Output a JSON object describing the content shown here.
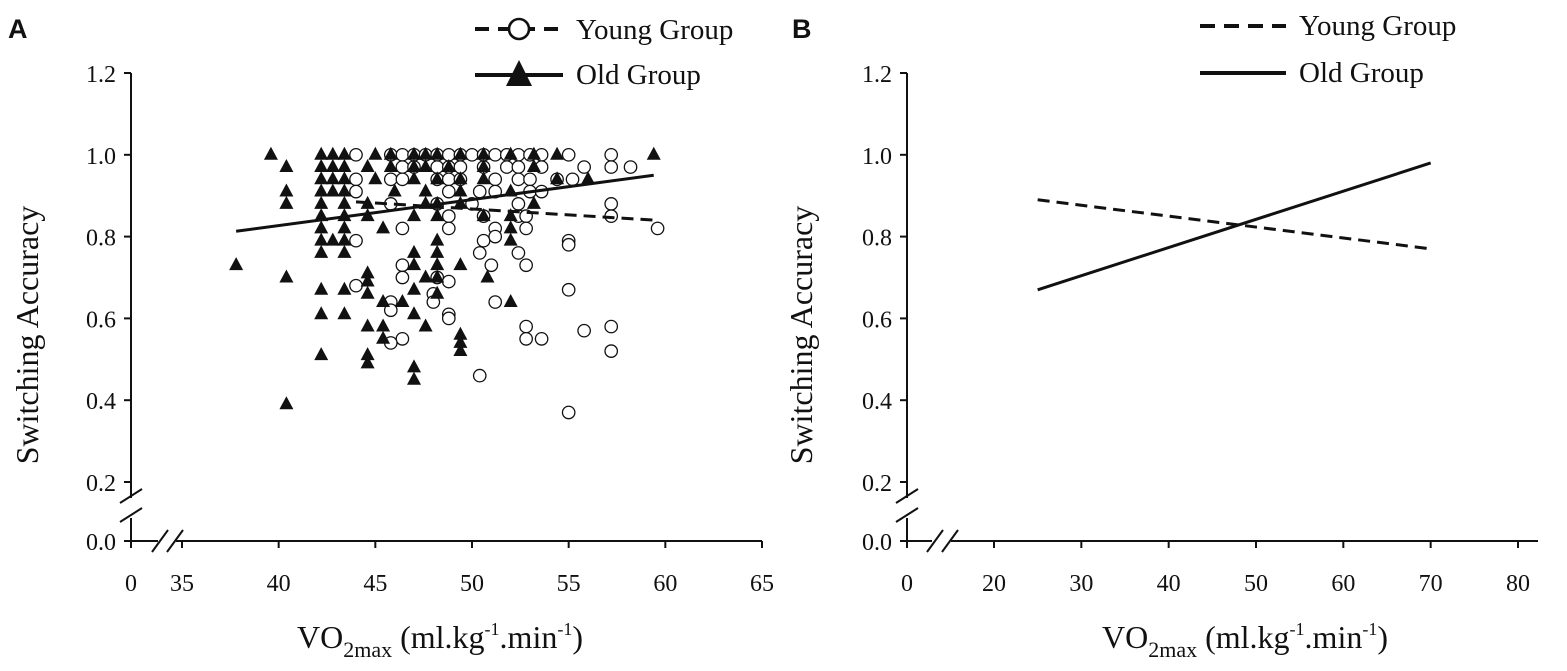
{
  "figure": {
    "panel_a_letter": "A",
    "panel_b_letter": "B"
  },
  "chart_data": [
    {
      "panel": "A",
      "type": "scatter",
      "title": "",
      "ylabel": "Switching Accuracy",
      "xlabel": {
        "main": "VO",
        "sub": "2max",
        "unit_a": " (ml.kg",
        "sup1": "-1",
        "unit_b": ".min",
        "sup2": "-1",
        "unit_c": ")"
      },
      "xlim_broken": [
        0,
        35,
        65
      ],
      "ylim_broken": [
        0.0,
        0.2,
        1.2
      ],
      "x_ticks": [
        "0",
        "35",
        "40",
        "45",
        "50",
        "55",
        "60",
        "65"
      ],
      "y_ticks": [
        "0.0",
        "0.2",
        "0.4",
        "0.6",
        "0.8",
        "1.0",
        "1.2"
      ],
      "legend": [
        {
          "label": "Young Group",
          "marker": "open-circle",
          "line": "dashed"
        },
        {
          "label": "Old Group",
          "marker": "filled-triangle",
          "line": "solid"
        }
      ],
      "series": [
        {
          "name": "Young Group",
          "marker": "open-circle",
          "points": [
            [
              44,
              1.0
            ],
            [
              45.8,
              1.0
            ],
            [
              46.4,
              1.0
            ],
            [
              47.0,
              1.0
            ],
            [
              47.6,
              1.0
            ],
            [
              48.2,
              1.0
            ],
            [
              48.8,
              1.0
            ],
            [
              49.4,
              1.0
            ],
            [
              50.0,
              1.0
            ],
            [
              50.6,
              1.0
            ],
            [
              51.2,
              1.0
            ],
            [
              51.8,
              1.0
            ],
            [
              52.4,
              1.0
            ],
            [
              53.0,
              1.0
            ],
            [
              53.6,
              1.0
            ],
            [
              55.0,
              1.0
            ],
            [
              57.2,
              1.0
            ],
            [
              46.4,
              0.97
            ],
            [
              47.0,
              0.97
            ],
            [
              48.2,
              0.97
            ],
            [
              48.8,
              0.97
            ],
            [
              49.4,
              0.97
            ],
            [
              50.6,
              0.97
            ],
            [
              51.8,
              0.97
            ],
            [
              52.4,
              0.97
            ],
            [
              53.6,
              0.97
            ],
            [
              55.8,
              0.97
            ],
            [
              57.2,
              0.97
            ],
            [
              58.2,
              0.97
            ],
            [
              44.0,
              0.94
            ],
            [
              45.8,
              0.94
            ],
            [
              46.4,
              0.94
            ],
            [
              48.2,
              0.94
            ],
            [
              48.8,
              0.94
            ],
            [
              49.4,
              0.94
            ],
            [
              51.2,
              0.94
            ],
            [
              52.4,
              0.94
            ],
            [
              53.0,
              0.94
            ],
            [
              54.4,
              0.94
            ],
            [
              55.2,
              0.94
            ],
            [
              44.0,
              0.91
            ],
            [
              48.8,
              0.91
            ],
            [
              50.4,
              0.91
            ],
            [
              51.2,
              0.91
            ],
            [
              53.0,
              0.91
            ],
            [
              53.6,
              0.91
            ],
            [
              45.8,
              0.88
            ],
            [
              48.2,
              0.88
            ],
            [
              50.0,
              0.88
            ],
            [
              52.4,
              0.88
            ],
            [
              57.2,
              0.88
            ],
            [
              48.8,
              0.85
            ],
            [
              50.6,
              0.85
            ],
            [
              52.4,
              0.85
            ],
            [
              52.8,
              0.85
            ],
            [
              57.2,
              0.85
            ],
            [
              46.4,
              0.82
            ],
            [
              48.8,
              0.82
            ],
            [
              51.2,
              0.82
            ],
            [
              52.8,
              0.82
            ],
            [
              59.6,
              0.82
            ],
            [
              44.0,
              0.79
            ],
            [
              50.6,
              0.79
            ],
            [
              51.2,
              0.8
            ],
            [
              50.4,
              0.76
            ],
            [
              52.4,
              0.76
            ],
            [
              55.0,
              0.79
            ],
            [
              55.0,
              0.78
            ],
            [
              46.4,
              0.73
            ],
            [
              51.0,
              0.73
            ],
            [
              52.8,
              0.73
            ],
            [
              46.4,
              0.7
            ],
            [
              48.2,
              0.7
            ],
            [
              48.8,
              0.69
            ],
            [
              44.0,
              0.68
            ],
            [
              48.0,
              0.66
            ],
            [
              48.0,
              0.64
            ],
            [
              51.2,
              0.64
            ],
            [
              45.8,
              0.64
            ],
            [
              45.8,
              0.62
            ],
            [
              55.0,
              0.67
            ],
            [
              48.8,
              0.61
            ],
            [
              48.8,
              0.6
            ],
            [
              52.8,
              0.58
            ],
            [
              55.8,
              0.57
            ],
            [
              57.2,
              0.58
            ],
            [
              52.8,
              0.55
            ],
            [
              53.6,
              0.55
            ],
            [
              46.4,
              0.55
            ],
            [
              45.8,
              0.54
            ],
            [
              57.2,
              0.52
            ],
            [
              50.4,
              0.46
            ],
            [
              55.0,
              0.37
            ]
          ]
        },
        {
          "name": "Old Group",
          "marker": "filled-triangle",
          "points": [
            [
              39.6,
              1.0
            ],
            [
              42.2,
              1.0
            ],
            [
              42.8,
              1.0
            ],
            [
              43.4,
              1.0
            ],
            [
              45.0,
              1.0
            ],
            [
              45.8,
              1.0
            ],
            [
              47.0,
              1.0
            ],
            [
              47.6,
              1.0
            ],
            [
              48.2,
              1.0
            ],
            [
              49.4,
              1.0
            ],
            [
              50.6,
              1.0
            ],
            [
              52.0,
              1.0
            ],
            [
              53.2,
              1.0
            ],
            [
              54.4,
              1.0
            ],
            [
              59.4,
              1.0
            ],
            [
              40.4,
              0.97
            ],
            [
              42.2,
              0.97
            ],
            [
              42.8,
              0.97
            ],
            [
              43.4,
              0.97
            ],
            [
              44.6,
              0.97
            ],
            [
              45.8,
              0.97
            ],
            [
              47.0,
              0.97
            ],
            [
              47.6,
              0.97
            ],
            [
              48.8,
              0.97
            ],
            [
              50.6,
              0.97
            ],
            [
              53.2,
              0.97
            ],
            [
              42.2,
              0.94
            ],
            [
              42.8,
              0.94
            ],
            [
              43.4,
              0.94
            ],
            [
              45.0,
              0.94
            ],
            [
              47.0,
              0.94
            ],
            [
              48.2,
              0.94
            ],
            [
              49.4,
              0.94
            ],
            [
              50.6,
              0.94
            ],
            [
              54.4,
              0.94
            ],
            [
              56.0,
              0.94
            ],
            [
              40.4,
              0.91
            ],
            [
              42.2,
              0.91
            ],
            [
              42.8,
              0.91
            ],
            [
              43.4,
              0.91
            ],
            [
              46.0,
              0.91
            ],
            [
              47.6,
              0.91
            ],
            [
              49.4,
              0.91
            ],
            [
              52.0,
              0.91
            ],
            [
              40.4,
              0.88
            ],
            [
              42.2,
              0.88
            ],
            [
              43.4,
              0.88
            ],
            [
              44.6,
              0.88
            ],
            [
              47.6,
              0.88
            ],
            [
              48.2,
              0.88
            ],
            [
              49.4,
              0.88
            ],
            [
              53.2,
              0.88
            ],
            [
              42.2,
              0.85
            ],
            [
              43.4,
              0.85
            ],
            [
              44.6,
              0.85
            ],
            [
              47.0,
              0.85
            ],
            [
              48.2,
              0.85
            ],
            [
              50.6,
              0.85
            ],
            [
              52.0,
              0.85
            ],
            [
              42.2,
              0.82
            ],
            [
              43.4,
              0.82
            ],
            [
              45.4,
              0.82
            ],
            [
              52.0,
              0.82
            ],
            [
              42.2,
              0.79
            ],
            [
              42.8,
              0.79
            ],
            [
              43.4,
              0.79
            ],
            [
              48.2,
              0.79
            ],
            [
              52.0,
              0.79
            ],
            [
              42.2,
              0.76
            ],
            [
              43.4,
              0.76
            ],
            [
              47.0,
              0.76
            ],
            [
              48.2,
              0.76
            ],
            [
              37.8,
              0.73
            ],
            [
              47.0,
              0.73
            ],
            [
              48.2,
              0.73
            ],
            [
              49.4,
              0.73
            ],
            [
              40.4,
              0.7
            ],
            [
              44.6,
              0.71
            ],
            [
              44.6,
              0.69
            ],
            [
              47.6,
              0.7
            ],
            [
              48.2,
              0.7
            ],
            [
              50.8,
              0.7
            ],
            [
              42.2,
              0.67
            ],
            [
              43.4,
              0.67
            ],
            [
              44.6,
              0.66
            ],
            [
              47.0,
              0.67
            ],
            [
              48.2,
              0.66
            ],
            [
              45.4,
              0.64
            ],
            [
              46.4,
              0.64
            ],
            [
              47.0,
              0.61
            ],
            [
              42.2,
              0.61
            ],
            [
              43.4,
              0.61
            ],
            [
              52.0,
              0.64
            ],
            [
              44.6,
              0.58
            ],
            [
              45.4,
              0.58
            ],
            [
              47.6,
              0.58
            ],
            [
              49.4,
              0.56
            ],
            [
              49.4,
              0.54
            ],
            [
              49.4,
              0.52
            ],
            [
              42.2,
              0.51
            ],
            [
              44.6,
              0.51
            ],
            [
              44.6,
              0.49
            ],
            [
              45.4,
              0.55
            ],
            [
              47.0,
              0.48
            ],
            [
              47.0,
              0.45
            ],
            [
              40.4,
              0.39
            ]
          ]
        }
      ],
      "fit_lines": [
        {
          "name": "Young Group",
          "style": "dashed",
          "x": [
            44,
            59.5
          ],
          "y": [
            0.885,
            0.84
          ]
        },
        {
          "name": "Old Group",
          "style": "solid",
          "x": [
            37.8,
            59.4
          ],
          "y": [
            0.813,
            0.95
          ]
        }
      ]
    },
    {
      "panel": "B",
      "type": "line",
      "title": "",
      "ylabel": "Switching Accuracy",
      "xlabel": {
        "main": "VO",
        "sub": "2max",
        "unit_a": " (ml.kg",
        "sup1": "-1",
        "unit_b": ".min",
        "sup2": "-1",
        "unit_c": ")"
      },
      "xlim_broken": [
        0,
        15,
        85
      ],
      "ylim_broken": [
        0.0,
        0.2,
        1.2
      ],
      "x_ticks": [
        "0",
        "20",
        "30",
        "40",
        "50",
        "60",
        "70",
        "80"
      ],
      "y_ticks": [
        "0.0",
        "0.2",
        "0.4",
        "0.6",
        "0.8",
        "1.0",
        "1.2"
      ],
      "legend": [
        {
          "label": "Young Group",
          "line": "dashed"
        },
        {
          "label": "Old Group",
          "line": "solid"
        }
      ],
      "series": [
        {
          "name": "Young Group",
          "style": "dashed",
          "x": [
            25,
            70
          ],
          "y": [
            0.89,
            0.77
          ]
        },
        {
          "name": "Old Group",
          "style": "solid",
          "x": [
            25,
            70
          ],
          "y": [
            0.67,
            0.98
          ]
        }
      ]
    }
  ]
}
